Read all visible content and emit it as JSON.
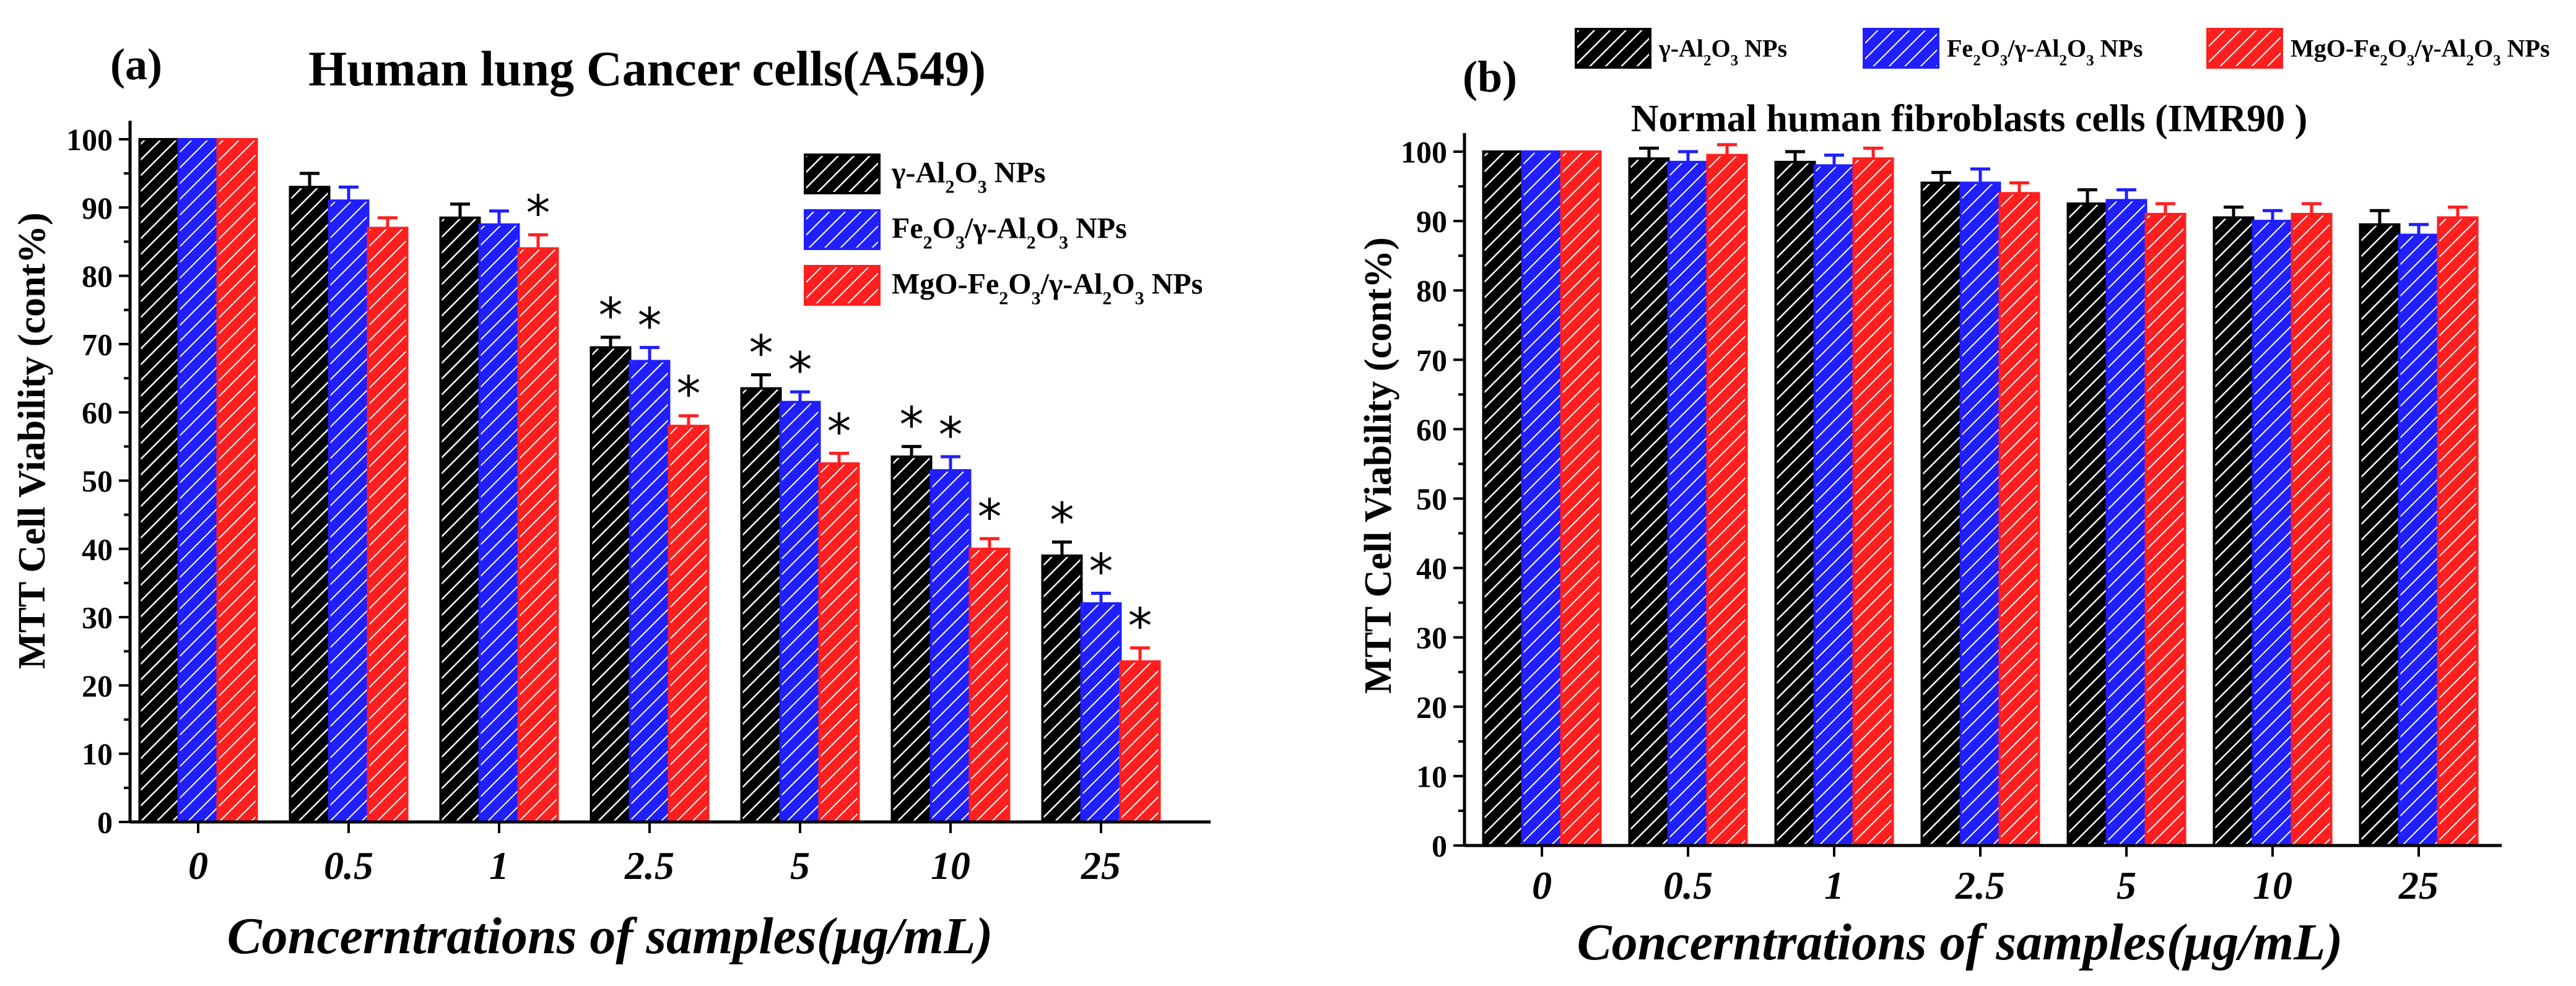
{
  "chart_data": [
    {
      "type": "bar",
      "panel_label": "(a)",
      "title": "Human lung Cancer cells(A549)",
      "xlabel": "Concerntrations of samples(μg/mL)",
      "ylabel": "MTT Cell Viability (cont%)",
      "categories": [
        "0",
        "0.5",
        "1",
        "2.5",
        "5",
        "10",
        "25"
      ],
      "ylim": [
        0,
        100
      ],
      "yticks": [
        "0",
        "10",
        "20",
        "30",
        "40",
        "50",
        "60",
        "70",
        "80",
        "90",
        "100"
      ],
      "grid": false,
      "legend_position": "top-right",
      "significance_marker": "*",
      "series": [
        {
          "name": "γ-Al2O3 NPs",
          "values": [
            100,
            93,
            88.5,
            69.5,
            63.5,
            53.5,
            39
          ],
          "errors": [
            0,
            2,
            2,
            1.5,
            2,
            1.5,
            2
          ],
          "significant": [
            false,
            false,
            false,
            true,
            true,
            true,
            true
          ]
        },
        {
          "name": "Fe2O3/γ-Al2O3 NPs",
          "values": [
            100,
            91,
            87.5,
            67.5,
            61.5,
            51.5,
            32
          ],
          "errors": [
            0,
            2,
            2,
            2,
            1.5,
            2,
            1.5
          ],
          "significant": [
            false,
            false,
            false,
            true,
            true,
            true,
            true
          ]
        },
        {
          "name": "MgO-Fe2O3/γ-Al2O3 NPs",
          "values": [
            100,
            87,
            84,
            58,
            52.5,
            40,
            23.5
          ],
          "errors": [
            0,
            1.5,
            2,
            1.5,
            1.5,
            1.5,
            2
          ],
          "significant": [
            false,
            false,
            true,
            true,
            true,
            true,
            true
          ]
        }
      ]
    },
    {
      "type": "bar",
      "panel_label": "(b)",
      "title": "Normal human fibroblasts cells (IMR90 )",
      "xlabel": "Concerntrations of samples(μg/mL)",
      "ylabel": "MTT Cell Viability (cont%)",
      "categories": [
        "0",
        "0.5",
        "1",
        "2.5",
        "5",
        "10",
        "25"
      ],
      "ylim": [
        0,
        100
      ],
      "yticks": [
        "0",
        "10",
        "20",
        "30",
        "40",
        "50",
        "60",
        "70",
        "80",
        "90",
        "100"
      ],
      "grid": false,
      "legend_position": "top",
      "series": [
        {
          "name": "γ-Al2O3 NPs",
          "values": [
            100,
            99,
            98.5,
            95.5,
            92.5,
            90.5,
            89.5
          ],
          "errors": [
            0,
            1.5,
            1.5,
            1.5,
            2,
            1.5,
            2
          ]
        },
        {
          "name": "Fe2O3/γ-Al2O3 NPs",
          "values": [
            100,
            98.5,
            98,
            95.5,
            93,
            90,
            88
          ],
          "errors": [
            0,
            1.5,
            1.5,
            2,
            1.5,
            1.5,
            1.5
          ]
        },
        {
          "name": "MgO-Fe2O3/γ-Al2O3 NPs",
          "values": [
            100,
            99.5,
            99,
            94,
            91,
            91,
            90.5
          ],
          "errors": [
            0,
            1.5,
            1.5,
            1.5,
            1.5,
            1.5,
            1.5
          ]
        }
      ]
    }
  ],
  "legend_items": [
    {
      "key": "g",
      "before": "γ-Al",
      "sub1": "2",
      "mid": "O",
      "sub2": "3",
      "after": " NPs"
    },
    {
      "key": "fe",
      "before": "Fe",
      "sub1": "2",
      "mid": "O",
      "sub2": "3",
      "mid2": "/γ-Al",
      "sub3": "2",
      "mid3": "O",
      "sub4": "3",
      "after": " NPs"
    },
    {
      "key": "mg",
      "before": "MgO-Fe",
      "sub1": "2",
      "mid": "O",
      "sub2": "3",
      "mid2": "/γ-Al",
      "sub3": "2",
      "mid3": "O",
      "sub4": "3",
      "after": " NPs"
    }
  ],
  "series_colors": [
    "#000000",
    "#1f1fff",
    "#ff1f1f"
  ]
}
